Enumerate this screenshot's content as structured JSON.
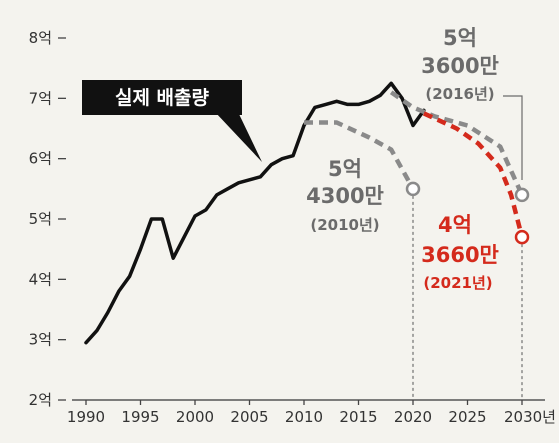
{
  "chart_data": {
    "type": "line",
    "title": "",
    "xlabel": "",
    "ylabel": "",
    "x_ticks": [
      "1990",
      "1995",
      "2000",
      "2005",
      "2010",
      "2015",
      "2020",
      "2025",
      "2030년"
    ],
    "y_ticks": [
      "8억",
      "7억",
      "6억",
      "5억",
      "4억",
      "3억",
      "2억"
    ],
    "xlim": [
      1990,
      2030
    ],
    "ylim": [
      2,
      8
    ],
    "grid": false,
    "legend": "none",
    "series": [
      {
        "name": "실제 배출량",
        "style": "solid",
        "color": "#111111",
        "x": [
          1990,
          1991,
          1992,
          1993,
          1994,
          1995,
          1996,
          1997,
          1998,
          1999,
          2000,
          2001,
          2002,
          2003,
          2004,
          2005,
          2006,
          2007,
          2008,
          2009,
          2010,
          2011,
          2012,
          2013,
          2014,
          2015,
          2016,
          2017,
          2018,
          2019,
          2020,
          2021
        ],
        "y": [
          2.95,
          3.15,
          3.45,
          3.8,
          4.05,
          4.5,
          5.0,
          5.0,
          4.35,
          4.7,
          5.05,
          5.15,
          5.4,
          5.5,
          5.6,
          5.65,
          5.7,
          5.9,
          6.0,
          6.05,
          6.55,
          6.85,
          6.9,
          6.95,
          6.9,
          6.9,
          6.95,
          7.05,
          7.25,
          7.0,
          6.55,
          6.8
        ]
      },
      {
        "name": "",
        "style": "dashed",
        "color": "#8a8a8a",
        "x": [
          2010,
          2013,
          2016,
          2018,
          2020
        ],
        "y": [
          6.6,
          6.6,
          6.35,
          6.15,
          5.5
        ]
      },
      {
        "name": "",
        "style": "dashed",
        "color": "#8a8a8a",
        "x": [
          2018,
          2020,
          2022,
          2025,
          2028,
          2030
        ],
        "y": [
          7.1,
          6.85,
          6.7,
          6.55,
          6.2,
          5.4
        ]
      },
      {
        "name": "",
        "style": "dashed",
        "color": "#d42a1c",
        "x": [
          2021,
          2024,
          2026,
          2028,
          2029,
          2030
        ],
        "y": [
          6.75,
          6.5,
          6.25,
          5.85,
          5.4,
          4.7
        ]
      }
    ],
    "endpoints": [
      {
        "x": 2020,
        "y": 5.5,
        "color": "#8a8a8a"
      },
      {
        "x": 2030,
        "y": 5.4,
        "color": "#8a8a8a"
      },
      {
        "x": 2030,
        "y": 4.7,
        "color": "#d42a1c"
      }
    ],
    "annotations": [
      {
        "lines": [
          "5억",
          "4300만",
          "(2010년)"
        ],
        "color": "#6b6b6b"
      },
      {
        "lines": [
          "5억",
          "3600만",
          "(2016년)"
        ],
        "color": "#6b6b6b"
      },
      {
        "lines": [
          "4억",
          "3660만",
          "(2021년)"
        ],
        "color": "#d42a1c"
      }
    ],
    "callout": "실제 배출량"
  }
}
